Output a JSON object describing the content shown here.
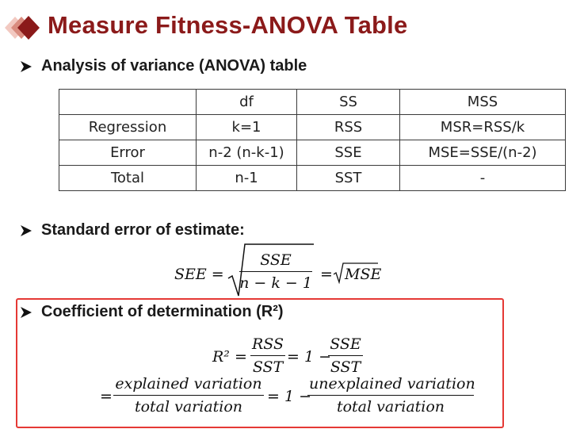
{
  "page": {
    "title": "Measure Fitness-ANOVA Table",
    "accent_color": "#8b1a1a",
    "logo_icon": "diamond-logo-icon",
    "bullet_icon": "arrow-bullet-icon"
  },
  "sections": {
    "anova": {
      "heading": "Analysis of variance (ANOVA) table"
    },
    "see": {
      "heading": "Standard error of estimate:"
    },
    "r2": {
      "heading": "Coefficient of determination (R²)",
      "highlight_color": "#e53935"
    }
  },
  "anova_table": {
    "header": [
      "",
      "df",
      "SS",
      "MSS"
    ],
    "rows": [
      [
        "Regression",
        "k=1",
        "RSS",
        "MSR=RSS/k"
      ],
      [
        "Error",
        "n-2 (n-k-1)",
        "SSE",
        "MSE=SSE/(n-2)"
      ],
      [
        "Total",
        "n-1",
        "SST",
        "-"
      ]
    ]
  },
  "formulas": {
    "see": {
      "lhs": "SEE =",
      "numerator": "SSE",
      "denominator": "n − k − 1",
      "eq": "=",
      "rhs_radicand": "MSE"
    },
    "r2_line1": {
      "lhs": "R² =",
      "frac1_num": "RSS",
      "frac1_den": "SST",
      "mid": "= 1 −",
      "frac2_num": "SSE",
      "frac2_den": "SST"
    },
    "r2_line2": {
      "lead": "=",
      "frac1_num": "explained variation",
      "frac1_den": "total variation",
      "mid": "= 1 −",
      "frac2_num": "unexplained variation",
      "frac2_den": "total variation"
    }
  }
}
